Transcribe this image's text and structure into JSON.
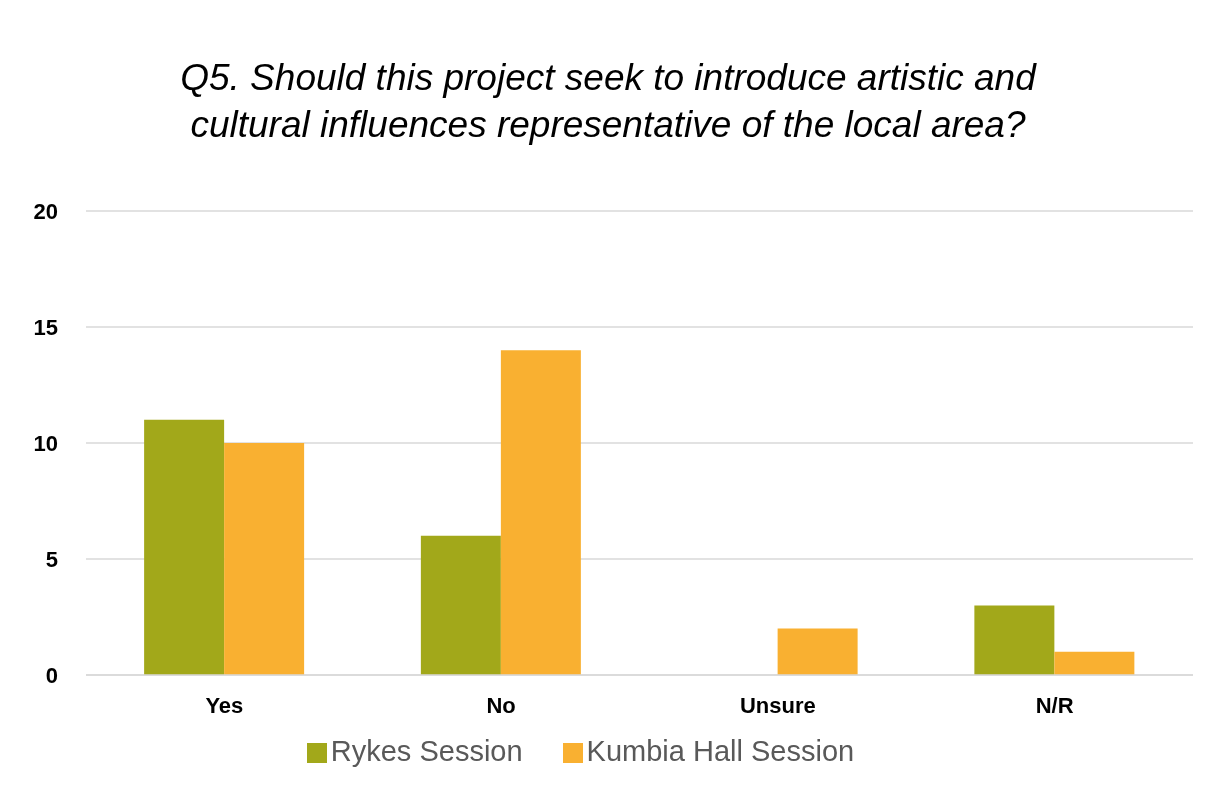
{
  "chart_data": {
    "type": "bar",
    "title": "Q5. Should this project seek to introduce artistic and cultural influences representative of the local area?",
    "categories": [
      "Yes",
      "No",
      "Unsure",
      "N/R"
    ],
    "series": [
      {
        "name": "Rykes Session",
        "color": "#a2a81a",
        "values": [
          11,
          6,
          0,
          3
        ]
      },
      {
        "name": "Kumbia Hall Session",
        "color": "#f9b031",
        "values": [
          10,
          14,
          2,
          1
        ]
      }
    ],
    "ylim": [
      0,
      20
    ],
    "yticks": [
      0,
      5,
      10,
      15,
      20
    ],
    "grid": "y",
    "legend": "bottom"
  }
}
